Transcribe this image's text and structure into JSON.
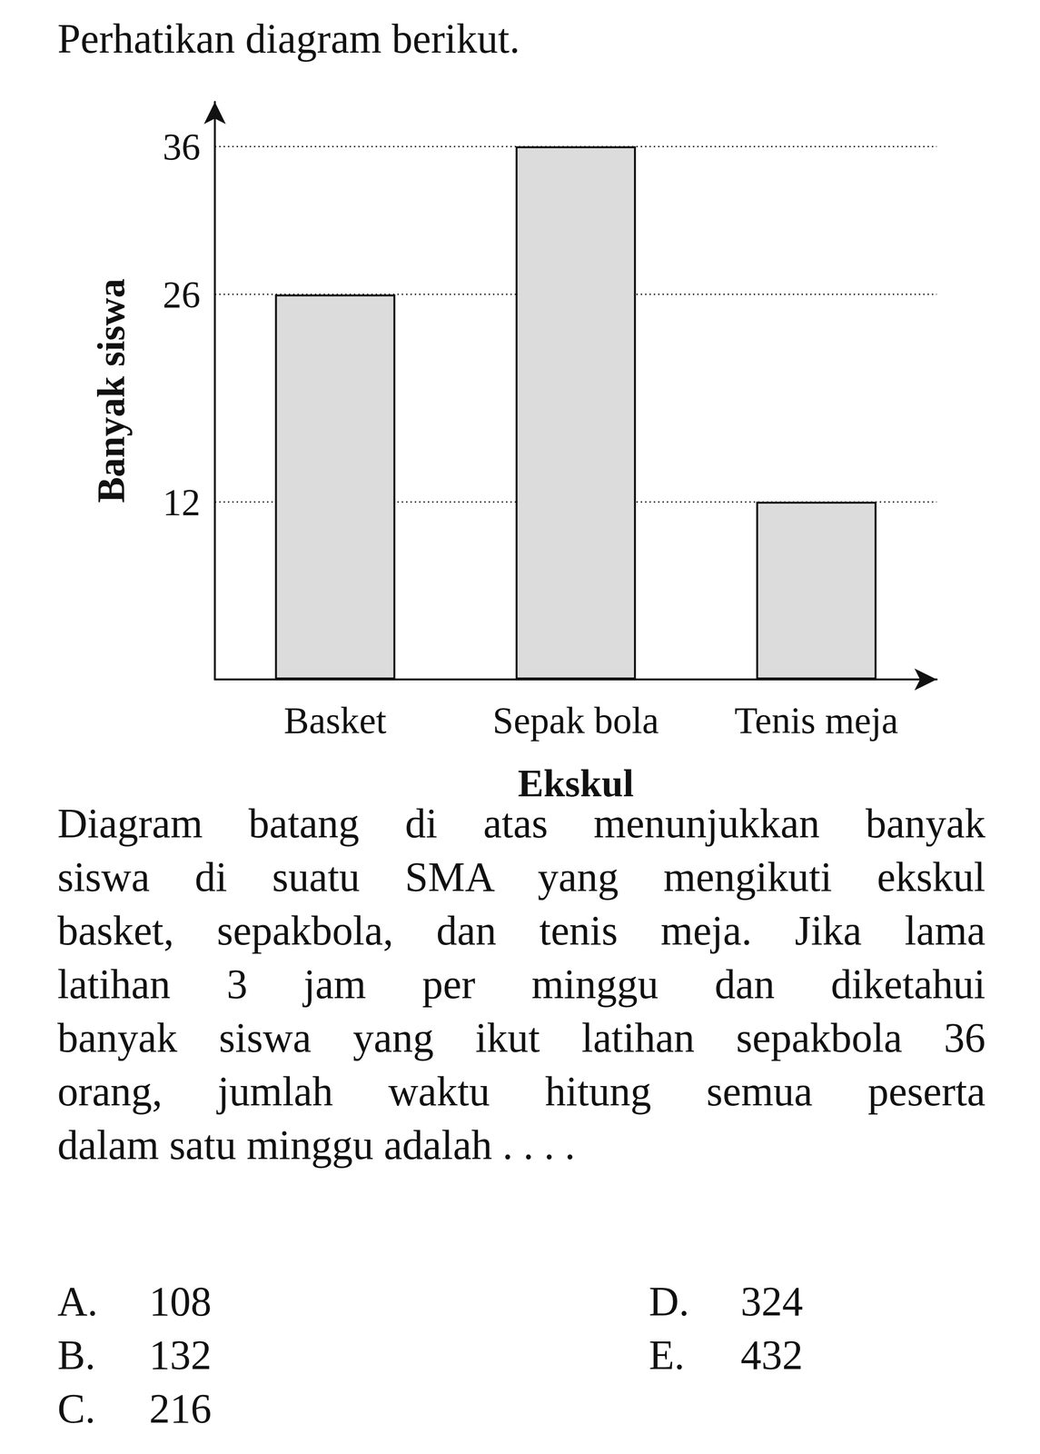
{
  "header": {
    "title": "Perhatikan diagram berikut."
  },
  "chart_data": {
    "type": "bar",
    "categories": [
      "Basket",
      "Sepak bola",
      "Tenis meja"
    ],
    "values": [
      26,
      36,
      12
    ],
    "x_label": "Ekskul",
    "y_label": "Banyak siswa",
    "ylim": [
      0,
      39
    ],
    "yticks": [
      12,
      26,
      36
    ],
    "grid": true,
    "color": "#dcdcdc"
  },
  "question": {
    "lines": [
      "Diagram batang di atas menunjukkan banyak",
      "siswa di suatu SMA yang mengikuti ekskul",
      "basket, sepakbola, dan tenis meja. Jika lama",
      "latihan 3 jam per minggu dan diketahui",
      "banyak siswa yang ikut latihan sepakbola 36",
      "orang, jumlah waktu hitung semua peserta",
      "dalam satu minggu adalah . . . ."
    ]
  },
  "options": [
    {
      "letter": "A.",
      "text": "108"
    },
    {
      "letter": "B.",
      "text": "132"
    },
    {
      "letter": "C.",
      "text": "216"
    },
    {
      "letter": "D.",
      "text": "324"
    },
    {
      "letter": "E.",
      "text": "432"
    }
  ]
}
